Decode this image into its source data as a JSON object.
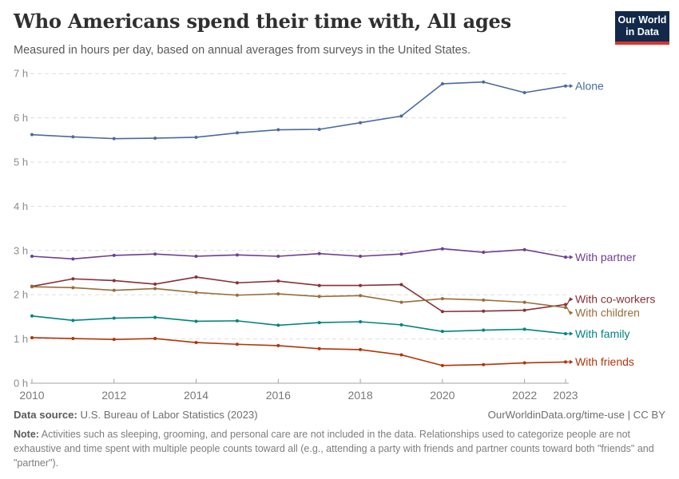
{
  "header": {
    "title": "Who Americans spend their time with, All ages",
    "subtitle": "Measured in hours per day, based on annual averages from surveys in the United States.",
    "logo": {
      "line1": "Our World",
      "line2": "in Data"
    }
  },
  "chart_data": {
    "type": "line",
    "title": "Who Americans spend their time with, All ages",
    "x": [
      2010,
      2011,
      2012,
      2013,
      2014,
      2015,
      2016,
      2017,
      2018,
      2019,
      2020,
      2021,
      2022,
      2023
    ],
    "series": [
      {
        "name": "Alone",
        "color": "#4C6A9C",
        "values": [
          5.62,
          5.57,
          5.53,
          5.54,
          5.56,
          5.66,
          5.73,
          5.74,
          5.89,
          6.04,
          6.77,
          6.81,
          6.57,
          6.72
        ]
      },
      {
        "name": "With partner",
        "color": "#6D3E91",
        "values": [
          2.87,
          2.81,
          2.89,
          2.92,
          2.87,
          2.9,
          2.87,
          2.93,
          2.87,
          2.92,
          3.04,
          2.96,
          3.02,
          2.85
        ]
      },
      {
        "name": "With co-workers",
        "color": "#883039",
        "values": [
          2.19,
          2.36,
          2.32,
          2.24,
          2.4,
          2.27,
          2.31,
          2.21,
          2.21,
          2.23,
          1.62,
          1.63,
          1.65,
          1.78
        ]
      },
      {
        "name": "With children",
        "color": "#996D39",
        "values": [
          2.18,
          2.16,
          2.1,
          2.14,
          2.05,
          1.99,
          2.02,
          1.96,
          1.98,
          1.83,
          1.91,
          1.88,
          1.83,
          1.71
        ]
      },
      {
        "name": "With family",
        "color": "#00847E",
        "values": [
          1.52,
          1.42,
          1.47,
          1.49,
          1.4,
          1.41,
          1.31,
          1.37,
          1.39,
          1.32,
          1.17,
          1.2,
          1.22,
          1.12
        ]
      },
      {
        "name": "With friends",
        "color": "#B13507",
        "values": [
          1.03,
          1.01,
          0.99,
          1.01,
          0.92,
          0.88,
          0.85,
          0.78,
          0.76,
          0.64,
          0.4,
          0.42,
          0.46,
          0.48
        ]
      }
    ],
    "xlabel": "",
    "ylabel": "hours per day",
    "ylim": [
      0,
      7
    ],
    "xlim": [
      2010,
      2023
    ],
    "yticks": [
      0,
      1,
      2,
      3,
      4,
      5,
      6,
      7
    ],
    "ytick_suffix": " h",
    "xticks": [
      2010,
      2012,
      2014,
      2016,
      2018,
      2020,
      2022,
      2023
    ],
    "grid": "horizontal-dashed",
    "legend_position": "right-edge-labels"
  },
  "footer": {
    "source_label": "Data source:",
    "source_text": " U.S. Bureau of Labor Statistics (2023)",
    "rights": "OurWorldinData.org/time-use | CC BY",
    "note_label": "Note:",
    "note_text": " Activities such as sleeping, grooming, and personal care are not included in the data. Relationships used to categorize people are not exhaustive and time spent with multiple people counts toward all (e.g., attending a party with friends and partner counts toward both \"friends\" and \"partner\")."
  }
}
